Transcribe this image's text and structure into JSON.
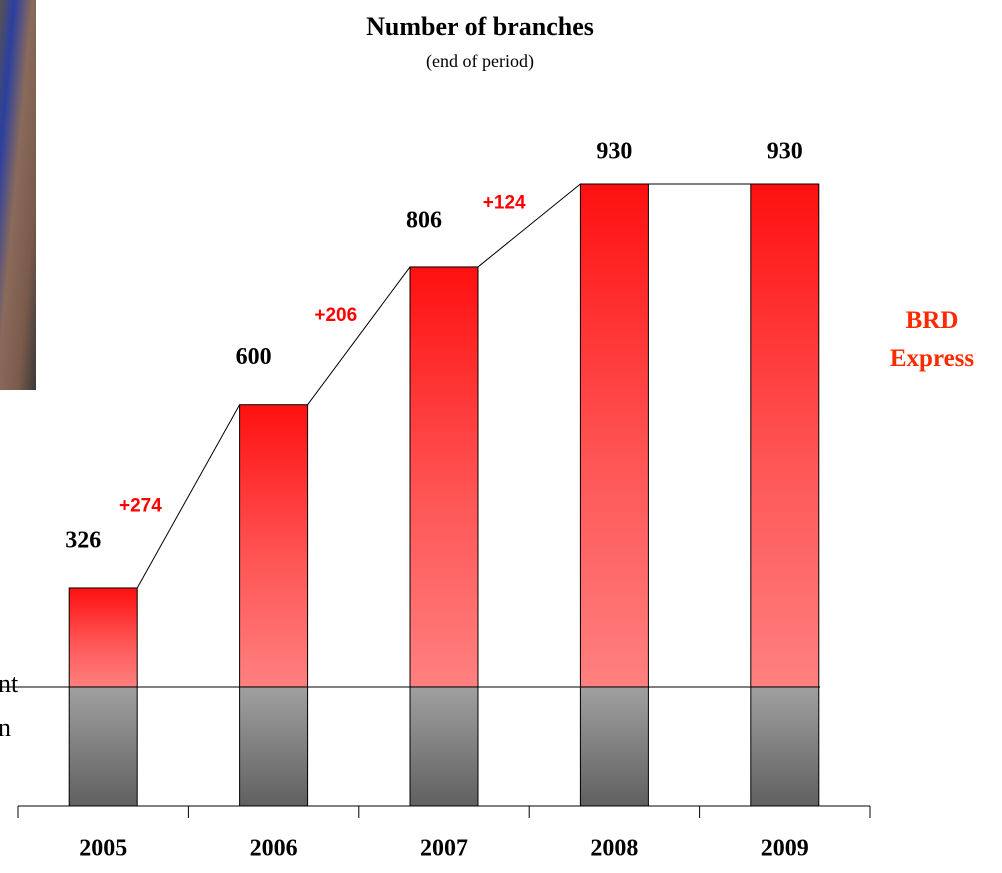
{
  "chart_data": {
    "type": "stacked_bar",
    "title": "Number of branches",
    "subtitle": "(end of period)",
    "categories": [
      "2005",
      "2006",
      "2007",
      "2008",
      "2009"
    ],
    "series": [
      {
        "color": "#808080",
        "values": [
          178,
          178,
          178,
          178,
          178
        ]
      },
      {
        "name": "BRD Express",
        "color": "#ff1a1a",
        "values": [
          148,
          422,
          628,
          752,
          752
        ]
      }
    ],
    "totals": [
      326,
      600,
      806,
      930,
      930
    ],
    "increments": [
      {
        "value": 274,
        "label": "+274"
      },
      {
        "value": 206,
        "label": "+206"
      },
      {
        "value": 124,
        "label": "+124"
      }
    ],
    "left_label_lines": [
      "nt",
      "n"
    ]
  }
}
